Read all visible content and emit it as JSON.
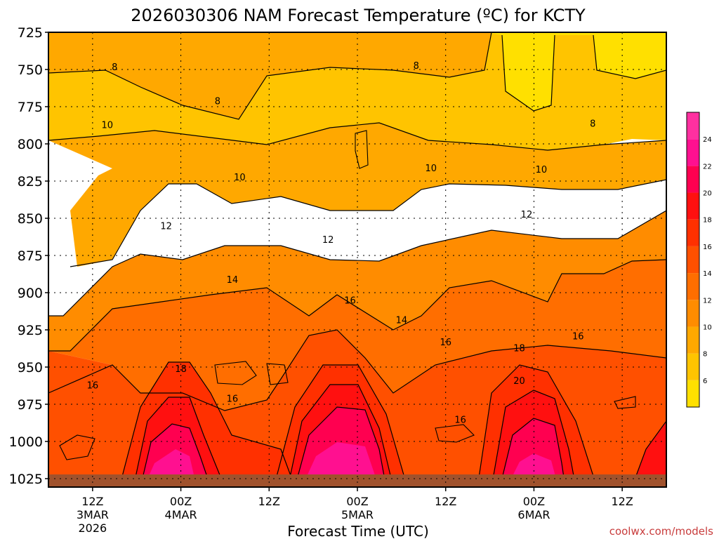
{
  "chart_data": {
    "type": "heatmap",
    "title": "2026030306 NAM Forecast Temperature (ºC) for KCTY",
    "xlabel": "Forecast Time (UTC)",
    "ylabel": "",
    "credit": "coolwx.com/models",
    "y_axis": {
      "scale": "pressure (inverted)",
      "range": [
        725,
        1025
      ],
      "ticks": [
        "725",
        "750",
        "775",
        "800",
        "825",
        "850",
        "875",
        "900",
        "925",
        "950",
        "975",
        "1000",
        "1025"
      ]
    },
    "x_axis": {
      "range_hours": [
        0,
        84
      ],
      "ticks": [
        {
          "hour": 6,
          "label": "12Z",
          "sub1": "3MAR",
          "sub2": "2026"
        },
        {
          "hour": 18,
          "label": "00Z",
          "sub1": "4MAR",
          "sub2": ""
        },
        {
          "hour": 30,
          "label": "12Z",
          "sub1": "",
          "sub2": ""
        },
        {
          "hour": 42,
          "label": "00Z",
          "sub1": "5MAR",
          "sub2": ""
        },
        {
          "hour": 54,
          "label": "12Z",
          "sub1": "",
          "sub2": ""
        },
        {
          "hour": 66,
          "label": "00Z",
          "sub1": "6MAR",
          "sub2": ""
        },
        {
          "hour": 78,
          "label": "12Z",
          "sub1": "",
          "sub2": ""
        }
      ]
    },
    "colorbar": {
      "levels": [
        "6",
        "8",
        "10",
        "12",
        "14",
        "16",
        "18",
        "20",
        "22",
        "24"
      ],
      "colors": [
        "#ffe000",
        "#ffc400",
        "#ffa800",
        "#ff8c00",
        "#ff6e00",
        "#ff5000",
        "#ff3000",
        "#ff1010",
        "#ff0050",
        "#ff1090",
        "#ff30a0"
      ]
    },
    "contour_labels": [
      {
        "value": "8",
        "hour": 9,
        "p": 749
      },
      {
        "value": "8",
        "hour": 23,
        "p": 772
      },
      {
        "value": "8",
        "hour": 50,
        "p": 748
      },
      {
        "value": "8",
        "hour": 74,
        "p": 787
      },
      {
        "value": "10",
        "hour": 8,
        "p": 788
      },
      {
        "value": "10",
        "hour": 26,
        "p": 823
      },
      {
        "value": "10",
        "hour": 52,
        "p": 817
      },
      {
        "value": "10",
        "hour": 67,
        "p": 818
      },
      {
        "value": "12",
        "hour": 16,
        "p": 856
      },
      {
        "value": "12",
        "hour": 38,
        "p": 865
      },
      {
        "value": "12",
        "hour": 65,
        "p": 848
      },
      {
        "value": "14",
        "hour": 25,
        "p": 892
      },
      {
        "value": "14",
        "hour": 48,
        "p": 919
      },
      {
        "value": "16",
        "hour": 41,
        "p": 906
      },
      {
        "value": "16",
        "hour": 54,
        "p": 934
      },
      {
        "value": "16",
        "hour": 72,
        "p": 930
      },
      {
        "value": "16",
        "hour": 6,
        "p": 963
      },
      {
        "value": "16",
        "hour": 25,
        "p": 972
      },
      {
        "value": "16",
        "hour": 56,
        "p": 986
      },
      {
        "value": "18",
        "hour": 18,
        "p": 952
      },
      {
        "value": "18",
        "hour": 64,
        "p": 938
      },
      {
        "value": "20",
        "hour": 64,
        "p": 960
      }
    ],
    "diurnal_warm_peaks": [
      {
        "hour": 18,
        "surface_temp_max": 26
      },
      {
        "hour": 42,
        "surface_temp_max": 26
      },
      {
        "hour": 66,
        "surface_temp_max": 26
      }
    ],
    "grid": true
  }
}
